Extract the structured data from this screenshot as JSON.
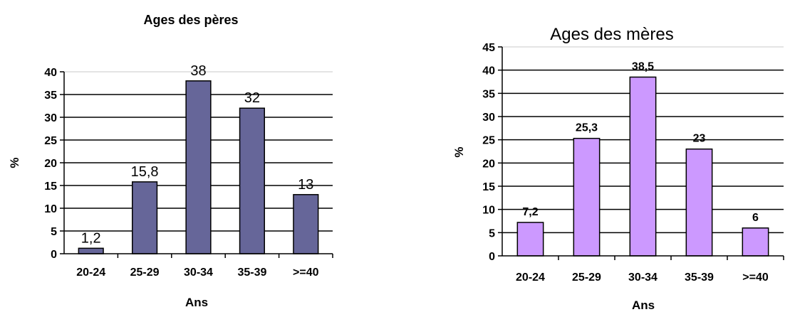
{
  "chart_data": [
    {
      "type": "bar",
      "title": "Ages des pères",
      "xlabel": "Ans",
      "ylabel": "%",
      "categories": [
        "20-24",
        "25-29",
        "30-34",
        "35-39",
        ">=40"
      ],
      "values": [
        1.2,
        15.8,
        38,
        32,
        13
      ],
      "value_labels": [
        "1,2",
        "15,8",
        "38",
        "32",
        "13"
      ],
      "ylim": [
        0,
        40
      ],
      "yticks": [
        0,
        5,
        10,
        15,
        20,
        25,
        30,
        35,
        40
      ],
      "grid": true,
      "bar_color": "#666699"
    },
    {
      "type": "bar",
      "title": "Ages des mères",
      "xlabel": "Ans",
      "ylabel": "%",
      "categories": [
        "20-24",
        "25-29",
        "30-34",
        "35-39",
        ">=40"
      ],
      "values": [
        7.2,
        25.3,
        38.5,
        23,
        6
      ],
      "value_labels": [
        "7,2",
        "25,3",
        "38,5",
        "23",
        "6"
      ],
      "ylim": [
        0,
        45
      ],
      "yticks": [
        0,
        5,
        10,
        15,
        20,
        25,
        30,
        35,
        40,
        45
      ],
      "grid": true,
      "bar_color": "#cc99ff"
    }
  ]
}
